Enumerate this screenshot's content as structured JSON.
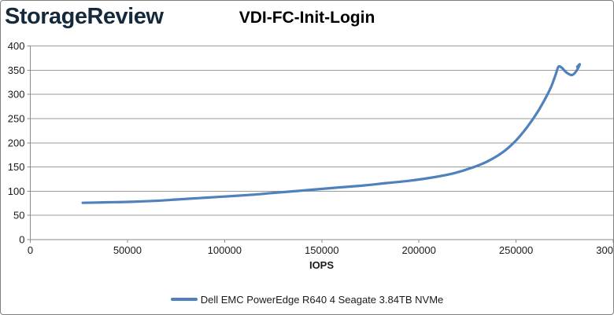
{
  "header": {
    "logo": "StorageReview",
    "logo_color": "#15293c"
  },
  "chart_data": {
    "type": "line",
    "title": "VDI-FC-Init-Login",
    "xlabel": "IOPS",
    "ylabel": "",
    "xlim": [
      0,
      300000
    ],
    "ylim": [
      0,
      400
    ],
    "x_ticks": [
      0,
      50000,
      100000,
      150000,
      200000,
      250000,
      300000
    ],
    "y_ticks": [
      0,
      50,
      100,
      150,
      200,
      250,
      300,
      350,
      400
    ],
    "grid": "horizontal",
    "gridline_color": "#9a9a9a",
    "axis_color": "#8a8a8a",
    "tick_label_color": "#1a1a1a",
    "legend_position": "bottom",
    "series": [
      {
        "name": "Dell EMC PowerEdge R640 4 Seagate 3.84TB NVMe",
        "color": "#4f81bd",
        "points": [
          [
            27000,
            76
          ],
          [
            40000,
            77
          ],
          [
            52000,
            78
          ],
          [
            64000,
            80
          ],
          [
            76000,
            83
          ],
          [
            88000,
            86
          ],
          [
            100000,
            89
          ],
          [
            112000,
            92
          ],
          [
            124000,
            96
          ],
          [
            136000,
            100
          ],
          [
            148000,
            104
          ],
          [
            160000,
            108
          ],
          [
            172000,
            112
          ],
          [
            184000,
            117
          ],
          [
            196000,
            122
          ],
          [
            208000,
            129
          ],
          [
            218000,
            137
          ],
          [
            227000,
            148
          ],
          [
            235000,
            161
          ],
          [
            243000,
            180
          ],
          [
            250000,
            205
          ],
          [
            256000,
            234
          ],
          [
            261000,
            263
          ],
          [
            265000,
            291
          ],
          [
            268000,
            315
          ],
          [
            270300,
            340
          ],
          [
            271800,
            357
          ],
          [
            273500,
            355
          ],
          [
            276000,
            345
          ],
          [
            278800,
            340
          ],
          [
            281000,
            348
          ],
          [
            282800,
            362
          ],
          [
            281500,
            357
          ]
        ]
      }
    ]
  }
}
